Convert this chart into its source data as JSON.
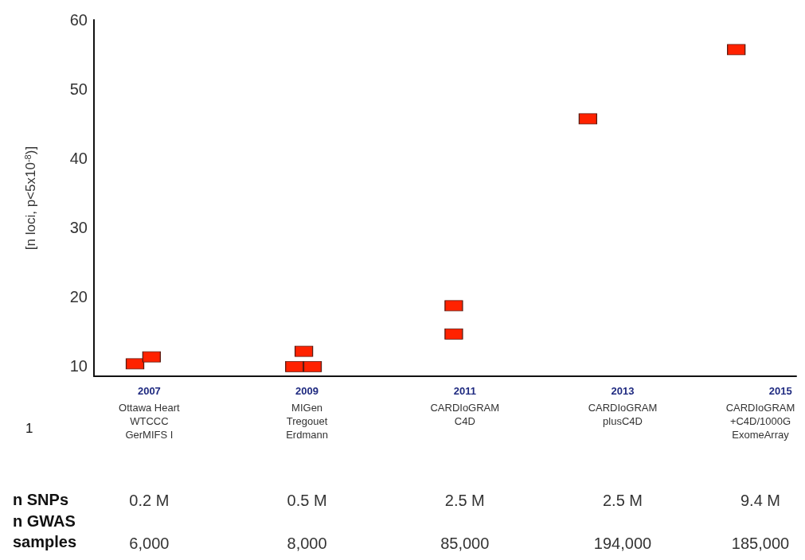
{
  "chart_data": {
    "type": "scatter",
    "ylabel": "[n loci, p<5x10$^{-8}$)]",
    "series": [
      {
        "color": "#ff2200",
        "x": [
          2006.82,
          2007.03,
          2008.84,
          2009.07,
          2008.96,
          2010.86,
          2010.86,
          2012.56,
          2014.44
        ],
        "values": [
          10.3,
          11.3,
          9.9,
          9.9,
          12.1,
          14.6,
          18.7,
          45.7,
          55.7
        ]
      }
    ],
    "marker": "square",
    "xlim": [
      2006.3,
      2015.2
    ],
    "xticks": [
      2007,
      2009,
      2011,
      2013,
      2015
    ],
    "ylim": [
      8.5,
      60
    ],
    "yticks": [
      10,
      20,
      30,
      40,
      50,
      60
    ],
    "annotations": [
      "1",
      "n SNPs",
      "n GWAS samples",
      "Ottawa Heart\nWTCCC\nGerMIFS I",
      "MIGen\nTregouet\nErdmann",
      "CARDIoGRAM\nC4D",
      "CARDIoGRAM\nplusC4D",
      "CARDIoGRAM\n+C4D/1000G\nExomeArray",
      "0.2 M",
      "0.5 M",
      "2.5 M",
      "2.5 M",
      "9.4 M",
      "6,000",
      "8,000",
      "85,000",
      "194,000",
      "185,000"
    ]
  }
}
